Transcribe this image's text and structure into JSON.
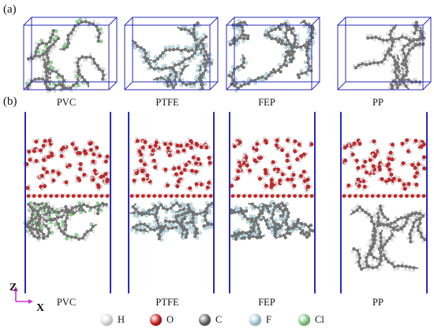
{
  "panels": {
    "a": {
      "tag": "(a)"
    },
    "b": {
      "tag": "(b)"
    }
  },
  "materials": [
    "PVC",
    "PTFE",
    "FEP",
    "PP"
  ],
  "axes": {
    "z": "Z",
    "x": "X"
  },
  "legend": [
    {
      "symbol": "H",
      "color": "#f4f4f4"
    },
    {
      "symbol": "O",
      "color": "#d91a1a"
    },
    {
      "symbol": "C",
      "color": "#6a6a6a"
    },
    {
      "symbol": "F",
      "color": "#b8e2f2"
    },
    {
      "symbol": "Cl",
      "color": "#8fdc8f"
    }
  ],
  "colors": {
    "box_edge": "#2a2ab8",
    "water_O": "#c62828",
    "water_H": "#f6d6dc",
    "carbon": "#7a7a7a",
    "fluorine": "#bfe3ee",
    "chlorine": "#8fdc8f",
    "hydrogen": "#eeeeee",
    "axis_arrow": "#cc33cc"
  }
}
